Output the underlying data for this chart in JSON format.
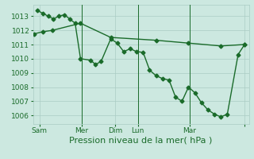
{
  "xlabel": "Pression niveau de la mer( hPa )",
  "bg_color": "#cce8e0",
  "grid_color": "#aaccc4",
  "line_color": "#1a6b2a",
  "ylim": [
    1005.4,
    1013.8
  ],
  "yticks": [
    1006,
    1007,
    1008,
    1009,
    1010,
    1011,
    1012,
    1013
  ],
  "xlim": [
    0,
    100
  ],
  "line1_x": [
    2.0,
    4.5,
    7.0,
    9.5,
    12.0,
    14.5,
    17.0,
    19.5,
    22.0,
    26.5,
    29.0,
    31.5,
    36.0,
    39.0,
    42.0,
    45.0,
    48.0,
    51.0,
    54.0,
    57.0,
    60.0,
    63.0,
    66.0,
    69.0,
    72.0,
    75.0,
    78.0,
    81.0,
    84.0,
    87.0,
    90.0,
    95.0,
    98.0
  ],
  "line1_y": [
    1013.4,
    1013.2,
    1013.0,
    1012.8,
    1013.0,
    1013.1,
    1012.8,
    1012.5,
    1010.0,
    1009.9,
    1009.6,
    1009.8,
    1011.4,
    1011.1,
    1010.5,
    1010.7,
    1010.5,
    1010.45,
    1009.2,
    1008.8,
    1008.6,
    1008.5,
    1007.3,
    1007.0,
    1008.0,
    1007.6,
    1006.9,
    1006.4,
    1006.1,
    1005.9,
    1006.1,
    1010.3,
    1011.0
  ],
  "line2_x": [
    0.5,
    4.5,
    9.0,
    22.0,
    36.0,
    57.0,
    72.0,
    87.0,
    98.0
  ],
  "line2_y": [
    1011.75,
    1011.9,
    1012.0,
    1012.5,
    1011.5,
    1011.3,
    1011.1,
    1010.9,
    1011.0
  ],
  "vlines_x": [
    22.5,
    48.5,
    72.5
  ],
  "xtick_positions": [
    3,
    22.5,
    38,
    48.5,
    72.5,
    98
  ],
  "xtick_labels": [
    "Sam",
    "Mer",
    "Dim",
    "Lun",
    "Mar",
    ""
  ],
  "marker_size": 2.5,
  "line_width": 1.0,
  "tick_fontsize": 6.5,
  "xlabel_fontsize": 8.0
}
